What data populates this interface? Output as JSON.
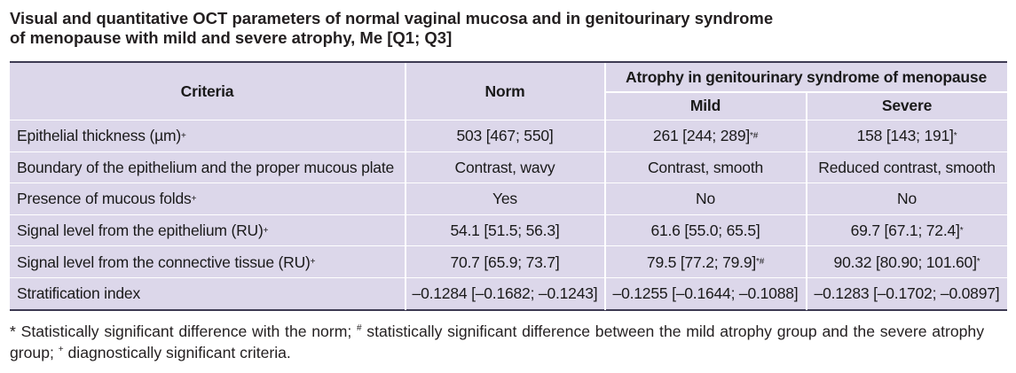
{
  "title": {
    "line1": "Visual and quantitative OCT parameters of normal vaginal mucosa and in genitourinary syndrome",
    "line2": "of menopause with mild and severe atrophy, Me [Q1; Q3]"
  },
  "header": {
    "criteria": "Criteria",
    "norm": "Norm",
    "group": "Atrophy in genitourinary syndrome of menopause",
    "mild": "Mild",
    "severe": "Severe"
  },
  "rows": [
    {
      "criterion": "Epithelial thickness (µm)",
      "criterion_sup": "+",
      "norm": "503 [467; 550]",
      "norm_sup": "",
      "mild": "261 [244; 289]",
      "mild_sup": "*#",
      "severe": "158 [143; 191]",
      "severe_sup": "*"
    },
    {
      "criterion": "Boundary of the epithelium and the proper mucous plate",
      "criterion_sup": "",
      "norm": "Contrast, wavy",
      "norm_sup": "",
      "mild": "Contrast, smooth",
      "mild_sup": "",
      "severe": "Reduced contrast, smooth",
      "severe_sup": ""
    },
    {
      "criterion": "Presence of mucous folds",
      "criterion_sup": "+",
      "norm": "Yes",
      "norm_sup": "",
      "mild": "No",
      "mild_sup": "",
      "severe": "No",
      "severe_sup": ""
    },
    {
      "criterion": "Signal level from the epithelium (RU)",
      "criterion_sup": "+",
      "norm": "54.1 [51.5; 56.3]",
      "norm_sup": "",
      "mild": "61.6 [55.0; 65.5]",
      "mild_sup": "",
      "severe": "69.7 [67.1; 72.4]",
      "severe_sup": "*"
    },
    {
      "criterion": "Signal level from the connective tissue (RU)",
      "criterion_sup": "+",
      "norm": "70.7 [65.9; 73.7]",
      "norm_sup": "",
      "mild": "79.5 [77.2; 79.9]",
      "mild_sup": "*#",
      "severe": "90.32 [80.90; 101.60]",
      "severe_sup": "*"
    },
    {
      "criterion": "Stratification index",
      "criterion_sup": "",
      "norm": "–0.1284 [–0.1682; –0.1243]",
      "norm_sup": "",
      "mild": "–0.1255 [–0.1644; –0.1088]",
      "mild_sup": "",
      "severe": "–0.1283 [–0.1702; –0.0897]",
      "severe_sup": ""
    }
  ],
  "footnote": {
    "star": "*",
    "star_text": " Statistically significant difference with the norm; ",
    "hash": "#",
    "hash_text": " statistically significant difference between the mild atrophy group and the severe atrophy group; ",
    "plus": "+",
    "plus_text": " diagnostically significant criteria."
  }
}
